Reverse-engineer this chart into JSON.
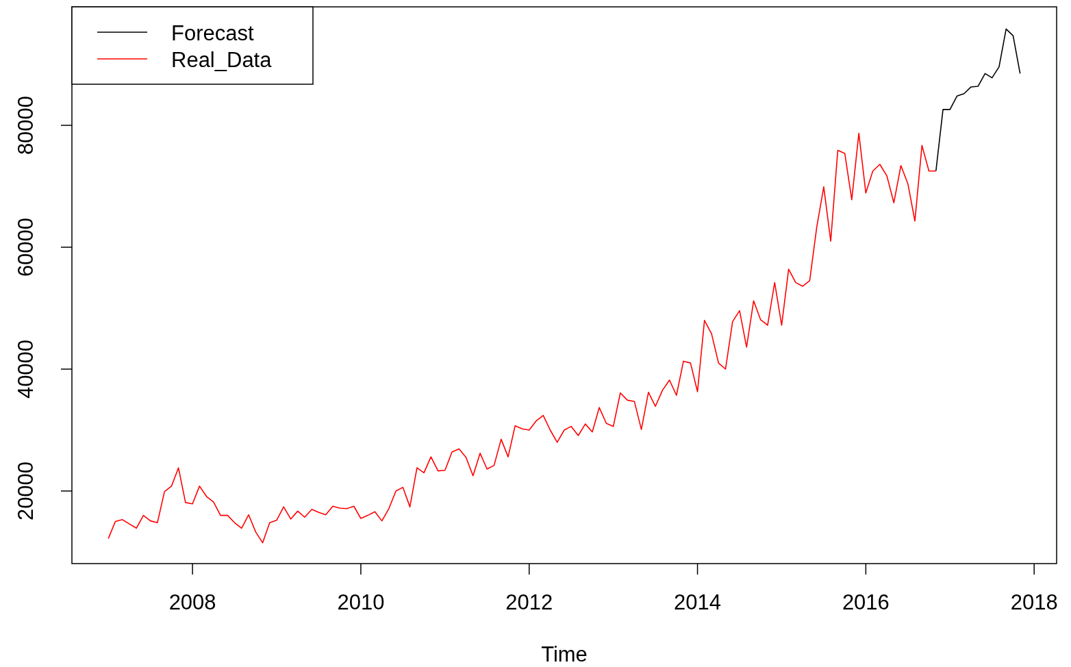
{
  "chart_data": {
    "type": "line",
    "xlabel": "Time",
    "xlim": [
      2006.567,
      2018.267
    ],
    "ylim": [
      8090,
      99440
    ],
    "xticks": [
      2008,
      2010,
      2012,
      2014,
      2016,
      2018
    ],
    "yticks": [
      20000,
      40000,
      60000,
      80000
    ],
    "legend": "top left",
    "series": [
      {
        "name": "Forecast",
        "color": "#000000",
        "x": [
          2016.833,
          2016.917,
          2017,
          2017.083,
          2017.167,
          2017.25,
          2017.333,
          2017.417,
          2017.5,
          2017.583,
          2017.667,
          2017.75,
          2017.833
        ],
        "values": [
          72500,
          82600,
          82600,
          84800,
          85200,
          86300,
          86400,
          88500,
          87800,
          89600,
          95800,
          94700,
          88500
        ]
      },
      {
        "name": "Real_Data",
        "color": "#ff0000",
        "x": [
          2007,
          2007.083,
          2007.167,
          2007.25,
          2007.333,
          2007.417,
          2007.5,
          2007.583,
          2007.667,
          2007.75,
          2007.833,
          2007.917,
          2008,
          2008.083,
          2008.167,
          2008.25,
          2008.333,
          2008.417,
          2008.5,
          2008.583,
          2008.667,
          2008.75,
          2008.833,
          2008.917,
          2009,
          2009.083,
          2009.167,
          2009.25,
          2009.333,
          2009.417,
          2009.5,
          2009.583,
          2009.667,
          2009.75,
          2009.833,
          2009.917,
          2010,
          2010.083,
          2010.167,
          2010.25,
          2010.333,
          2010.417,
          2010.5,
          2010.583,
          2010.667,
          2010.75,
          2010.833,
          2010.917,
          2011,
          2011.083,
          2011.167,
          2011.25,
          2011.333,
          2011.417,
          2011.5,
          2011.583,
          2011.667,
          2011.75,
          2011.833,
          2011.917,
          2012,
          2012.083,
          2012.167,
          2012.25,
          2012.333,
          2012.417,
          2012.5,
          2012.583,
          2012.667,
          2012.75,
          2012.833,
          2012.917,
          2013,
          2013.083,
          2013.167,
          2013.25,
          2013.333,
          2013.417,
          2013.5,
          2013.583,
          2013.667,
          2013.75,
          2013.833,
          2013.917,
          2014,
          2014.083,
          2014.167,
          2014.25,
          2014.333,
          2014.417,
          2014.5,
          2014.583,
          2014.667,
          2014.75,
          2014.833,
          2014.917,
          2015,
          2015.083,
          2015.167,
          2015.25,
          2015.333,
          2015.417,
          2015.5,
          2015.583,
          2015.667,
          2015.75,
          2015.833,
          2015.917,
          2016,
          2016.083,
          2016.167,
          2016.25,
          2016.333,
          2016.417,
          2016.5,
          2016.583,
          2016.667,
          2016.75,
          2016.833
        ],
        "values": [
          12200,
          15000,
          15300,
          14600,
          13900,
          16000,
          15100,
          14800,
          19900,
          20800,
          23800,
          18100,
          17900,
          20800,
          19100,
          18200,
          16000,
          16000,
          14800,
          13900,
          16100,
          13300,
          11500,
          14800,
          15200,
          17400,
          15400,
          16700,
          15700,
          17000,
          16500,
          16100,
          17500,
          17200,
          17100,
          17500,
          15500,
          16000,
          16600,
          15100,
          17100,
          20000,
          20600,
          17400,
          23800,
          23000,
          25600,
          23300,
          23400,
          26400,
          26900,
          25500,
          22500,
          26200,
          23600,
          24200,
          28500,
          25600,
          30700,
          30200,
          30000,
          31500,
          32400,
          30000,
          28000,
          30000,
          30600,
          29100,
          31000,
          29700,
          33700,
          31100,
          30600,
          36100,
          34900,
          34700,
          30100,
          36200,
          33900,
          36500,
          38200,
          35700,
          41300,
          41000,
          36300,
          48000,
          45800,
          41000,
          40000,
          47800,
          49600,
          43600,
          51200,
          48100,
          47200,
          54200,
          47200,
          56400,
          54200,
          53600,
          54500,
          63300,
          69900,
          61000,
          75900,
          75400,
          67800,
          78700,
          68900,
          72500,
          73600,
          71700,
          67300,
          73400,
          70400,
          64300,
          76700,
          72500,
          72500
        ]
      }
    ]
  }
}
